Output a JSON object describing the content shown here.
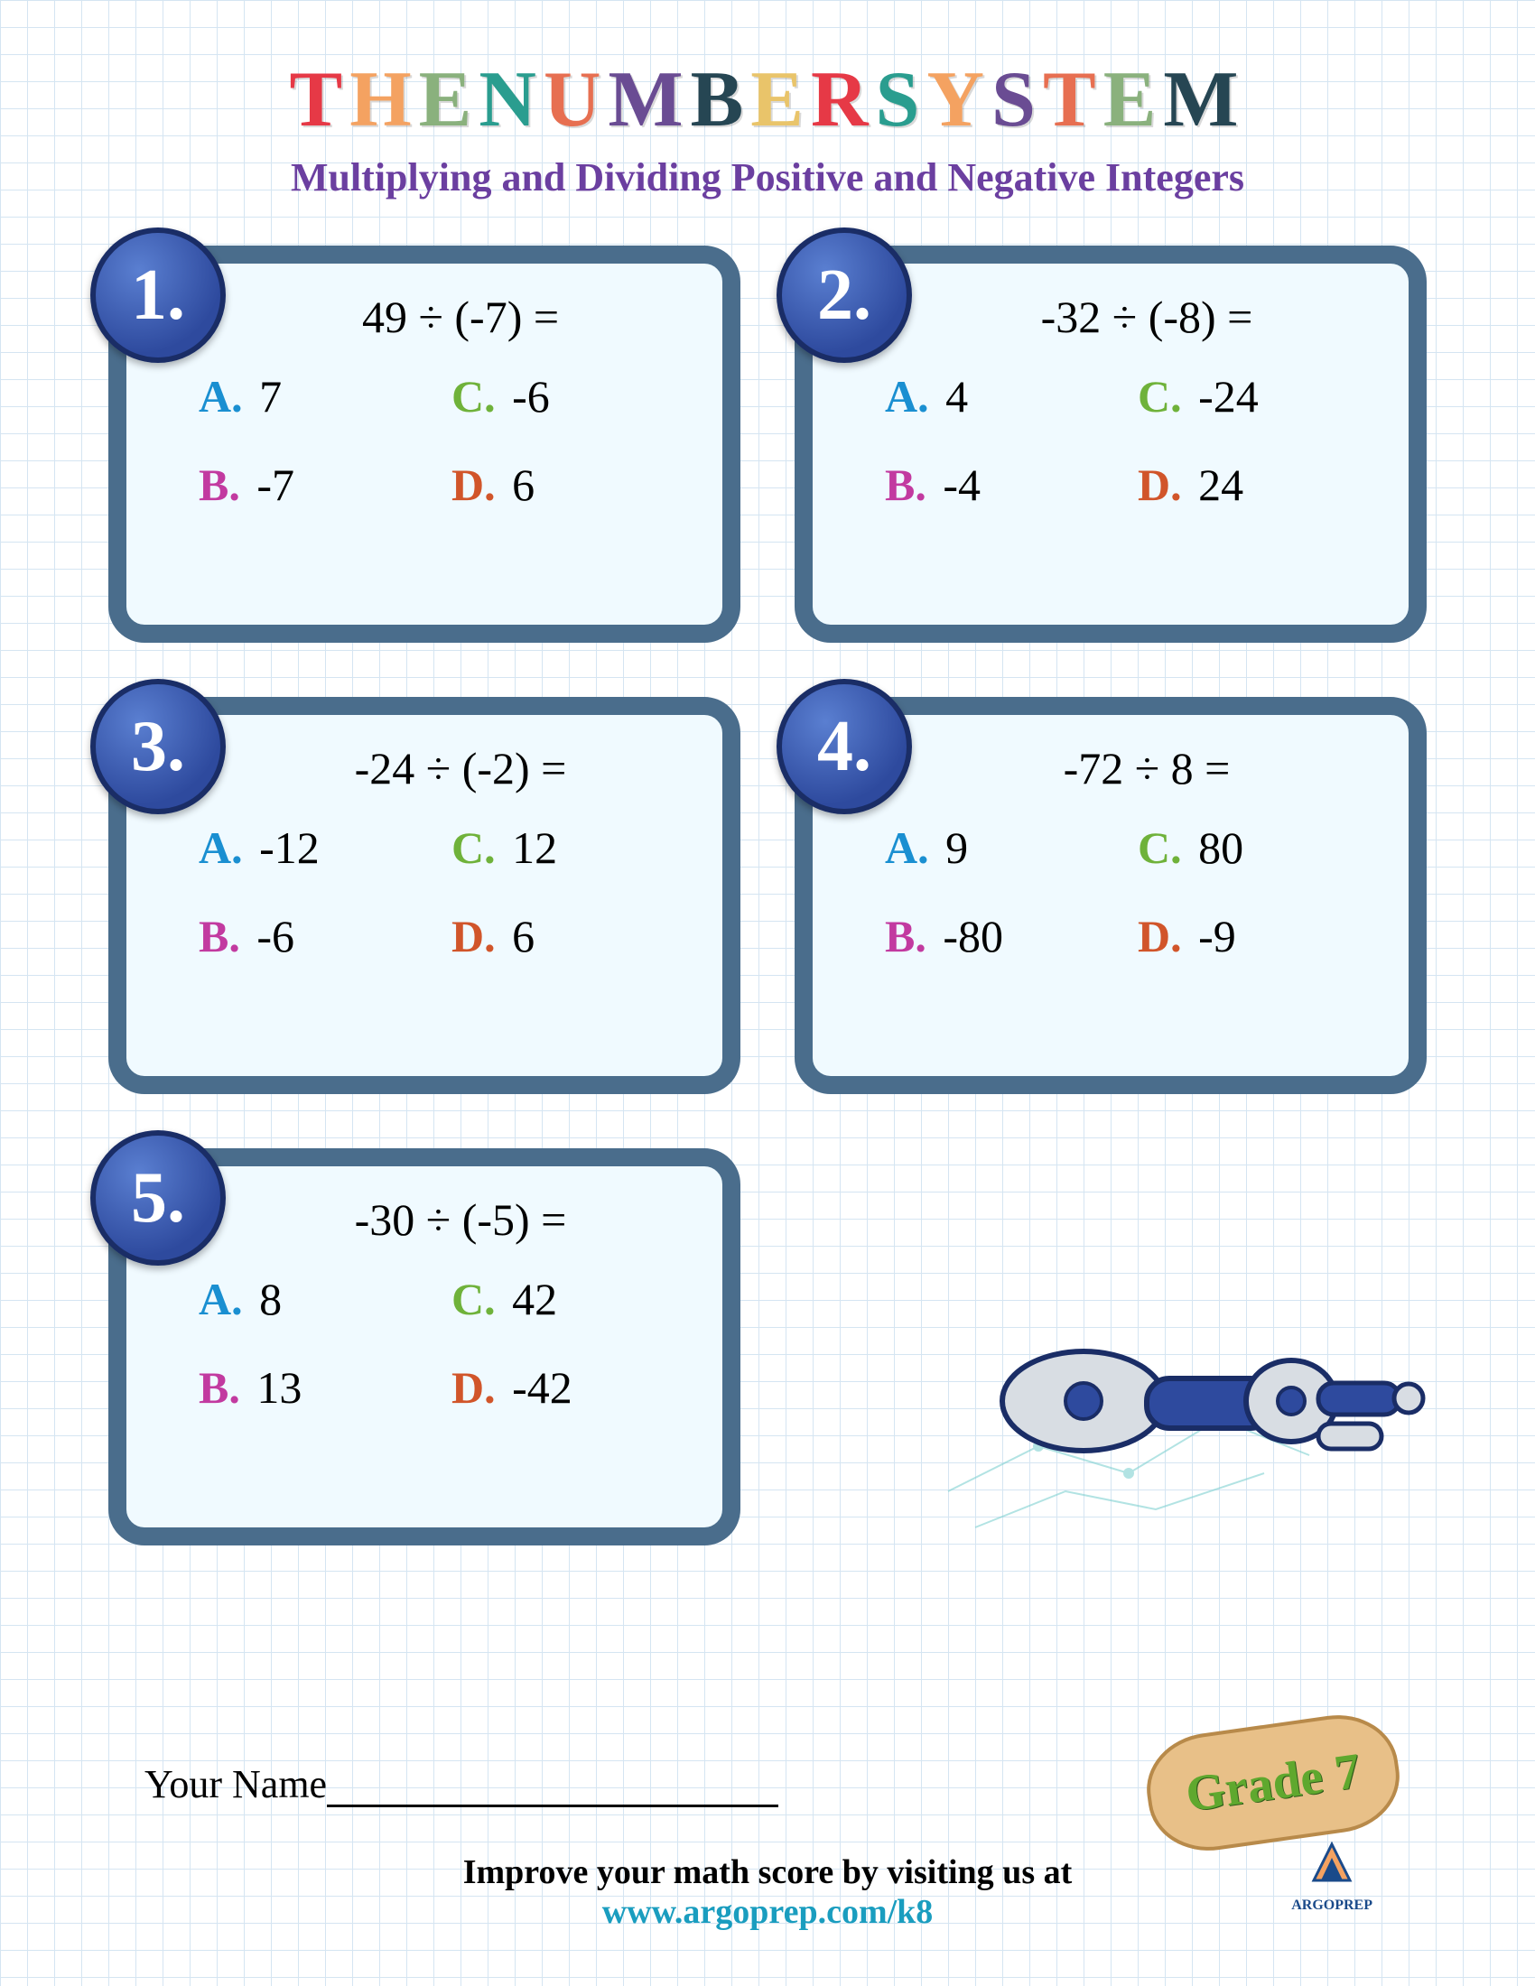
{
  "title_chars": [
    {
      "c": "T",
      "color": "#e63946"
    },
    {
      "c": "H",
      "color": "#f4a261"
    },
    {
      "c": "E",
      "color": "#8ab17d"
    },
    {
      "c": " ",
      "color": "#000"
    },
    {
      "c": "N",
      "color": "#2a9d8f"
    },
    {
      "c": "U",
      "color": "#e76f51"
    },
    {
      "c": "M",
      "color": "#6a4c93"
    },
    {
      "c": "B",
      "color": "#264653"
    },
    {
      "c": "E",
      "color": "#e9c46a"
    },
    {
      "c": "R",
      "color": "#e63946"
    },
    {
      "c": " ",
      "color": "#000"
    },
    {
      "c": "S",
      "color": "#2a9d8f"
    },
    {
      "c": "Y",
      "color": "#f4a261"
    },
    {
      "c": "S",
      "color": "#6a4c93"
    },
    {
      "c": "T",
      "color": "#e76f51"
    },
    {
      "c": "E",
      "color": "#8ab17d"
    },
    {
      "c": "M",
      "color": "#264653"
    }
  ],
  "subtitle": "Multiplying and Dividing Positive and Negative Integers",
  "choice_colors": {
    "A": "#1a8fd1",
    "B": "#c23aa0",
    "C": "#6fb23a",
    "D": "#d1552a"
  },
  "card_style": {
    "border_color": "#4a6d8c",
    "bg": "#f0faff",
    "radius": 40,
    "border_width": 20
  },
  "badge_style": {
    "grad_inner": "#5a7fd1",
    "grad_outer": "#2e4a9e",
    "border": "#1a2d66",
    "text": "#ffffff"
  },
  "questions": [
    {
      "n": "1.",
      "q": "49 ÷ (-7) =",
      "A": "7",
      "B": "-7",
      "C": "-6",
      "D": "6"
    },
    {
      "n": "2.",
      "q": "-32 ÷ (-8) =",
      "A": "4",
      "B": "-4",
      "C": "-24",
      "D": "24"
    },
    {
      "n": "3.",
      "q": "-24 ÷ (-2) =",
      "A": "-12",
      "B": "-6",
      "C": "12",
      "D": "6"
    },
    {
      "n": "4.",
      "q": "-72 ÷ 8 =",
      "A": "9",
      "B": "-80",
      "C": "80",
      "D": "-9"
    },
    {
      "n": "5.",
      "q": "-30 ÷ (-5) =",
      "A": "8",
      "B": "13",
      "C": "42",
      "D": "-42"
    }
  ],
  "name_label": "Your Name",
  "improve_text": "Improve your math score by visiting us at",
  "url_text": "www.argoprep.com/k8",
  "grade_text": "Grade 7",
  "logo_text": "ARGOPREP",
  "grid_color": "#d5e5f2",
  "grid_size": 30,
  "page_bg": "#ffffff",
  "subtitle_color": "#6b3fa0",
  "url_color": "#1a9dbf",
  "grade_bg": "#e8c088",
  "grade_border": "#b88a4a",
  "grade_text_color": "#5fa82e"
}
